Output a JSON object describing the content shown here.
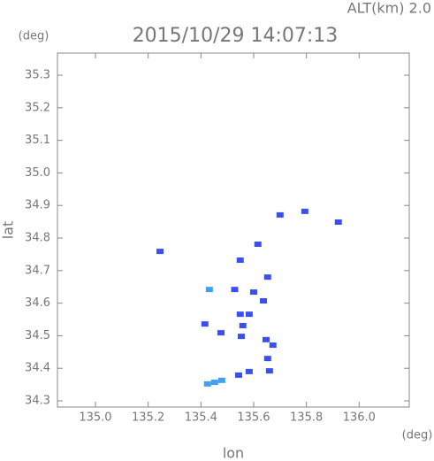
{
  "chart_data": {
    "type": "scatter",
    "title": "2015/10/29 14:07:13",
    "subtitle": "ALT(km) 2.0",
    "x_label": "lon",
    "y_label": "lat",
    "x_unit": "(deg)",
    "y_unit": "(deg)",
    "xlim": [
      134.856,
      136.19
    ],
    "ylim": [
      34.281,
      35.368
    ],
    "xticks": [
      {
        "value": 135,
        "label": "135.0"
      },
      135.2,
      135.4,
      135.6,
      135.8,
      {
        "value": 136,
        "label": "136.0"
      }
    ],
    "yticks": [
      34.3,
      34.4,
      34.5,
      34.6,
      34.7,
      34.8,
      34.9,
      {
        "value": 35,
        "label": "35.0"
      },
      35.1,
      35.2,
      35.3
    ],
    "series": [
      {
        "color": "#3b4ef0",
        "x": [
          135.794,
          135.921,
          135.7,
          135.616,
          135.245,
          135.549,
          135.653,
          135.528,
          135.6,
          135.637,
          135.583,
          135.549,
          135.559,
          135.553,
          135.647,
          135.673,
          135.653,
          135.583,
          135.543,
          135.66,
          135.415,
          135.476
        ],
        "y": [
          34.882,
          34.849,
          34.871,
          34.781,
          34.759,
          34.732,
          34.68,
          34.642,
          34.634,
          34.607,
          34.566,
          34.566,
          34.531,
          34.498,
          34.488,
          34.471,
          34.43,
          34.39,
          34.379,
          34.392,
          34.536,
          34.509
        ]
      },
      {
        "color": "#3fa0f5",
        "x": [
          135.432,
          135.425,
          135.452,
          135.479
        ],
        "y": [
          34.642,
          34.352,
          34.357,
          34.363
        ]
      }
    ]
  }
}
